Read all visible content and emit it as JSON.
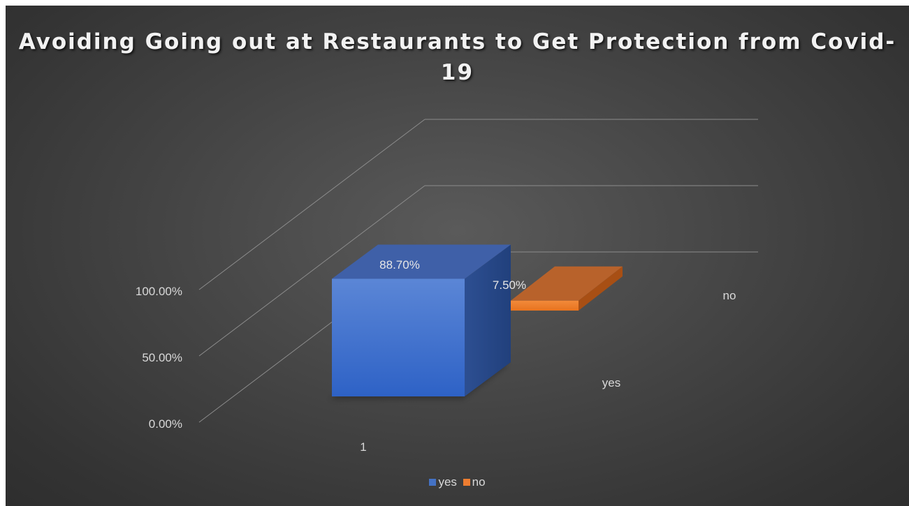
{
  "chart_data": {
    "type": "bar",
    "subtype": "3d-column",
    "title": "Avoiding Going out at Restaurants to Get Protection from Covid-19",
    "categories": [
      "1"
    ],
    "series": [
      {
        "name": "yes",
        "values": [
          0.887
        ],
        "label": "88.70%"
      },
      {
        "name": "no",
        "values": [
          0.075
        ],
        "label": "7.50%"
      }
    ],
    "depth_labels": [
      "yes",
      "no"
    ],
    "y_ticks": [
      "0.00%",
      "50.00%",
      "100.00%"
    ],
    "ylim": [
      0,
      1
    ],
    "grid": true,
    "legend": "bottom",
    "colors": {
      "yes": "#4472c4",
      "no": "#ed7d31",
      "background": "#404040",
      "text": "#d9d9d9"
    }
  }
}
